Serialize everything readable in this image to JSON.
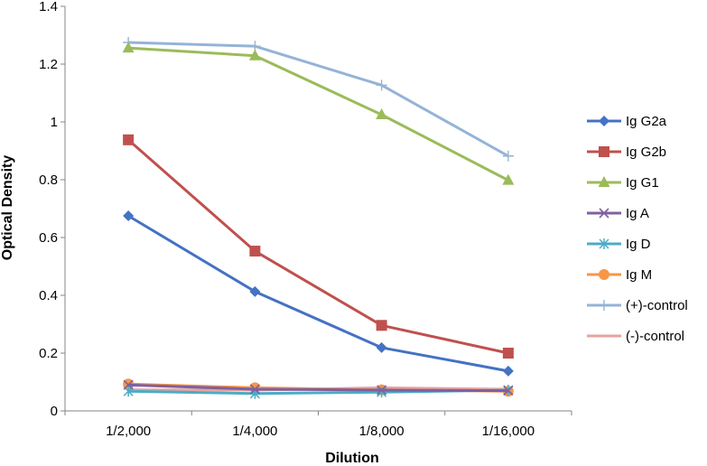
{
  "chart_data": {
    "type": "line",
    "title": "",
    "xlabel": "Dilution",
    "ylabel": "Optical Density",
    "categories": [
      "1/2,000",
      "1/4,000",
      "1/8,000",
      "1/16,000"
    ],
    "ylim": [
      0,
      1.4
    ],
    "yticks": [
      0,
      0.2,
      0.4,
      0.6,
      0.8,
      1,
      1.2,
      1.4
    ],
    "ytick_labels": [
      "0",
      "0.2",
      "0.4",
      "0.6",
      "0.8",
      "1",
      "1.2",
      "1.4"
    ],
    "grid": false,
    "legend_position": "right",
    "series": [
      {
        "name": "Ig G2a",
        "values": [
          0.675,
          0.413,
          0.219,
          0.138
        ],
        "color": "#4472C4",
        "marker": "diamond"
      },
      {
        "name": "Ig G2b",
        "values": [
          0.938,
          0.553,
          0.296,
          0.2
        ],
        "color": "#C0504D",
        "marker": "square"
      },
      {
        "name": "Ig G1",
        "values": [
          1.256,
          1.229,
          1.025,
          0.798
        ],
        "color": "#9BBB59",
        "marker": "triangle"
      },
      {
        "name": "Ig A",
        "values": [
          0.09,
          0.075,
          0.072,
          0.07
        ],
        "color": "#7F60A0",
        "marker": "x"
      },
      {
        "name": "Ig D",
        "values": [
          0.068,
          0.06,
          0.065,
          0.072
        ],
        "color": "#4BACC6",
        "marker": "asterisk"
      },
      {
        "name": "Ig M",
        "values": [
          0.093,
          0.08,
          0.073,
          0.068
        ],
        "color": "#F79646",
        "marker": "circle"
      },
      {
        "name": "(+)-control",
        "values": [
          1.275,
          1.262,
          1.127,
          0.882
        ],
        "color": "#95B3D7",
        "marker": "plus"
      },
      {
        "name": "(-)-control",
        "values": [
          0.073,
          0.072,
          0.08,
          0.075
        ],
        "color": "#E6A3A1",
        "marker": "none"
      }
    ]
  }
}
